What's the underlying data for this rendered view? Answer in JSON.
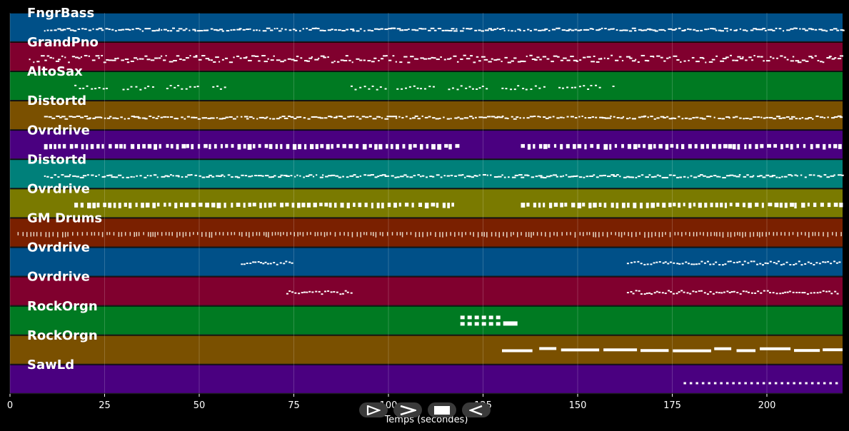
{
  "chart_data": {
    "type": "piano-roll",
    "xlabel": "Temps (secondes)",
    "xlim": [
      0,
      220
    ],
    "xticks": [
      0,
      25,
      50,
      75,
      100,
      125,
      150,
      175,
      200
    ],
    "grid": true,
    "tracks": [
      {
        "name": "FngrBass",
        "color": "#005088",
        "segments": [
          [
            9,
            220
          ]
        ],
        "style": "dense-mid"
      },
      {
        "name": "GrandPno",
        "color": "#80002e",
        "segments": [
          [
            5,
            220
          ]
        ],
        "style": "dense-full"
      },
      {
        "name": "AltoSax",
        "color": "#007a22",
        "segments": [
          [
            17,
            57
          ],
          [
            90,
            160
          ]
        ],
        "style": "phrases"
      },
      {
        "name": "Distortd",
        "color": "#7a5000",
        "segments": [
          [
            9,
            220
          ]
        ],
        "style": "dense-mid"
      },
      {
        "name": "Ovrdrive",
        "color": "#4a0080",
        "segments": [
          [
            9,
            118
          ],
          [
            135,
            220
          ]
        ],
        "style": "chunky"
      },
      {
        "name": "Distortd",
        "color": "#00807a",
        "segments": [
          [
            9,
            220
          ]
        ],
        "style": "dense-mid"
      },
      {
        "name": "Ovrdrive",
        "color": "#7a7a00",
        "segments": [
          [
            17,
            118
          ],
          [
            135,
            220
          ]
        ],
        "style": "chunky"
      },
      {
        "name": "GM Drums",
        "color": "#7a2000",
        "segments": [
          [
            2,
            220
          ]
        ],
        "style": "drums"
      },
      {
        "name": "Ovrdrive",
        "color": "#005088",
        "segments": [
          [
            61,
            75
          ],
          [
            163,
            219
          ]
        ],
        "style": "line"
      },
      {
        "name": "Ovrdrive",
        "color": "#80002e",
        "segments": [
          [
            73,
            90
          ],
          [
            163,
            219
          ]
        ],
        "style": "line"
      },
      {
        "name": "RockOrgn",
        "color": "#007a22",
        "segments": [
          [
            119,
            134
          ]
        ],
        "style": "blocks"
      },
      {
        "name": "RockOrgn",
        "color": "#7a5000",
        "segments": [
          [
            130,
            220
          ]
        ],
        "style": "sustain"
      },
      {
        "name": "SawLd",
        "color": "#4a0080",
        "segments": [
          [
            178,
            219
          ]
        ],
        "style": "dots"
      }
    ]
  },
  "controls": {
    "play_icon": "play-icon",
    "forward_icon": "fast-forward-icon",
    "stop_icon": "stop-icon",
    "rewind_icon": "rewind-icon"
  }
}
